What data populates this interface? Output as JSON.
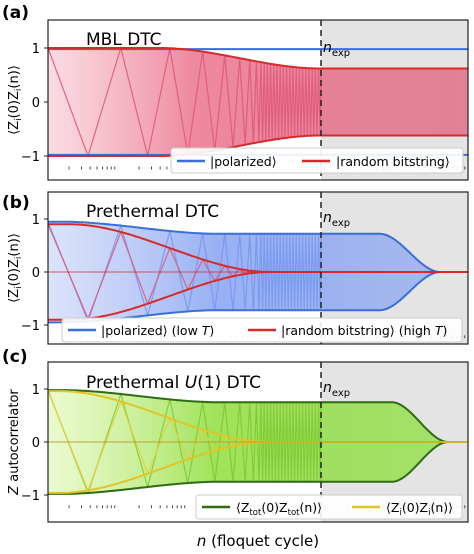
{
  "chart_data": [
    {
      "type": "line",
      "panel_label": "(a)",
      "title": "MBL DTC",
      "ylabel": "⟨Z_i(0)Z_i(n)⟩",
      "ylabel_main": "⟨Z",
      "ylabel_mid1": "(0)Z",
      "ylabel_close": "(n)⟩",
      "ylabel_sub": "i",
      "xscale": "log",
      "ylim": [
        -1.25,
        1.25
      ],
      "yticks": [
        -1,
        0,
        1
      ],
      "n_exp_label": "n",
      "n_exp_sub": "exp",
      "legend": "bottom-right",
      "series": [
        {
          "name": "|polarized⟩",
          "legend_label": "|polarized⟩",
          "color": "#3a6fd8",
          "start_envelope": 1.0,
          "plateau_envelope": 0.98,
          "decay": "none"
        },
        {
          "name": "|random bitstring⟩",
          "legend_label": "|random bitstring⟩",
          "color": "#d62a2a",
          "start_envelope": 1.0,
          "plateau_envelope": 0.62,
          "decay": "none"
        }
      ]
    },
    {
      "type": "line",
      "panel_label": "(b)",
      "title": "Prethermal DTC",
      "ylabel": "⟨Z_i(0)Z_i(n)⟩",
      "ylabel_main": "⟨Z",
      "ylabel_mid1": "(0)Z",
      "ylabel_close": "(n)⟩",
      "ylabel_sub": "i",
      "xscale": "log",
      "ylim": [
        -1.25,
        1.25
      ],
      "yticks": [
        -1,
        0,
        1
      ],
      "n_exp_label": "n",
      "n_exp_sub": "exp",
      "legend": "bottom",
      "series": [
        {
          "name": "|polarized⟩ (low T)",
          "legend_label": "|polarized⟩ (low ",
          "legend_T": "T",
          "legend_close": ")",
          "color": "#3a6fd8",
          "start_envelope": 0.95,
          "plateau_envelope": 0.72,
          "decay": "after n_exp"
        },
        {
          "name": "|random bitstring⟩ (high T)",
          "legend_label": "|random bitstring⟩ (high ",
          "legend_T": "T",
          "legend_close": ")",
          "color": "#d62a2a",
          "start_envelope": 0.9,
          "plateau_envelope": 0.0,
          "decay": "before n_exp"
        }
      ]
    },
    {
      "type": "line",
      "panel_label": "(c)",
      "title_pre": "Prethermal ",
      "title_U": "U",
      "title_post": "(1) DTC",
      "ylabel": "Z autocorrelator",
      "ylabel_Z": "Z",
      "ylabel_rest": " autocorrelator",
      "xlabel": "n (floquet cycle)",
      "xlabel_n": "n",
      "xlabel_rest": " (floquet cycle)",
      "xscale": "log",
      "ylim": [
        -1.25,
        1.25
      ],
      "yticks": [
        -1,
        0,
        1
      ],
      "n_exp_label": "n",
      "n_exp_sub": "exp",
      "legend": "bottom-right",
      "series": [
        {
          "name": "⟨Z_tot(0)Z_tot(n)⟩",
          "legend_main": "⟨Z",
          "legend_sub1": "tot",
          "legend_mid": "(0)Z",
          "legend_sub2": "tot",
          "legend_close": "(n)⟩",
          "color": "#2e6b12",
          "start_envelope": 0.98,
          "plateau_envelope": 0.75,
          "decay": "after n_exp"
        },
        {
          "name": "⟨Z_i(0)Z_i(n)⟩",
          "legend_main": "⟨Z",
          "legend_sub1": "i",
          "legend_mid": "(0)Z",
          "legend_sub2": "i",
          "legend_close": "(n)⟩",
          "color": "#e0c526",
          "start_envelope": 0.96,
          "plateau_envelope": 0.0,
          "decay": "before n_exp"
        }
      ]
    }
  ]
}
